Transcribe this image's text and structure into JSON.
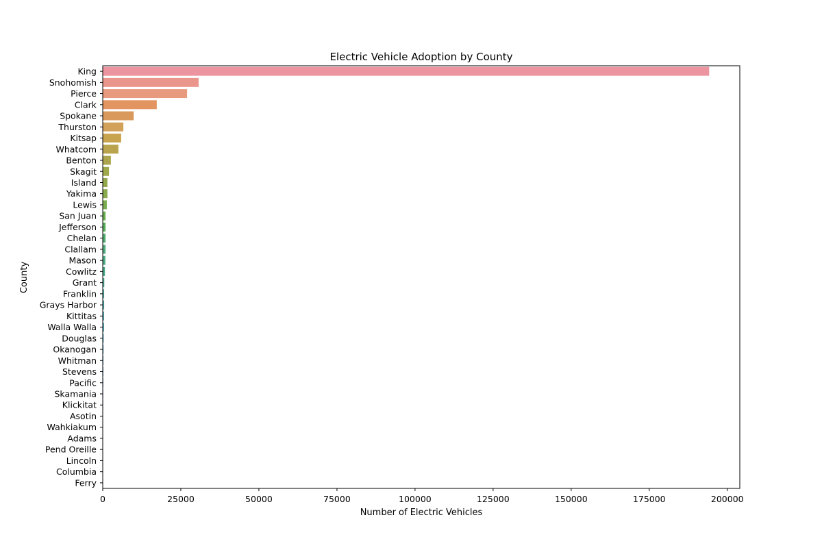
{
  "chart_data": {
    "type": "bar",
    "orientation": "horizontal",
    "title": "Electric Vehicle Adoption by County",
    "xlabel": "Number of Electric Vehicles",
    "ylabel": "County",
    "xlim": [
      0,
      204000
    ],
    "xticks": [
      0,
      25000,
      50000,
      75000,
      100000,
      125000,
      150000,
      175000,
      200000
    ],
    "grid": false,
    "categories": [
      "King",
      "Snohomish",
      "Pierce",
      "Clark",
      "Spokane",
      "Thurston",
      "Kitsap",
      "Whatcom",
      "Benton",
      "Skagit",
      "Island",
      "Yakima",
      "Lewis",
      "San Juan",
      "Jefferson",
      "Chelan",
      "Clallam",
      "Mason",
      "Cowlitz",
      "Grant",
      "Franklin",
      "Grays Harbor",
      "Kittitas",
      "Walla Walla",
      "Douglas",
      "Okanogan",
      "Whitman",
      "Stevens",
      "Pacific",
      "Skamania",
      "Klickitat",
      "Asotin",
      "Wahkiakum",
      "Adams",
      "Pend Oreille",
      "Lincoln",
      "Columbia",
      "Ferry"
    ],
    "values": [
      194200,
      30700,
      27000,
      17300,
      9900,
      6600,
      5900,
      5000,
      2600,
      2000,
      1500,
      1500,
      1300,
      900,
      900,
      900,
      900,
      850,
      700,
      500,
      450,
      450,
      420,
      420,
      300,
      250,
      220,
      200,
      180,
      150,
      140,
      80,
      60,
      50,
      40,
      30,
      20,
      15
    ],
    "colors": [
      "#ec949f",
      "#ea968c",
      "#e89a7e",
      "#e29560",
      "#d9985c",
      "#d2a15a",
      "#c9a44f",
      "#b9a44d",
      "#aca54d",
      "#a0a84c",
      "#94aa4f",
      "#89ac4e",
      "#7bae4f",
      "#6aaf50",
      "#58ae5d",
      "#51ad70",
      "#50ad7d",
      "#4eac86",
      "#4ca98e",
      "#4aa895",
      "#4aa79c",
      "#49a6a2",
      "#4ba5aa",
      "#4ca4b1",
      "#4fa3b9",
      "#52a1c2",
      "#589ecb",
      "#609bd3",
      "#6c97d8",
      "#7b92dc",
      "#8a8cdf",
      "#9a87e0",
      "#aa82e0",
      "#b87ddd",
      "#c67bd9",
      "#d27ad2",
      "#dd7bc8",
      "#e57fbe"
    ]
  }
}
